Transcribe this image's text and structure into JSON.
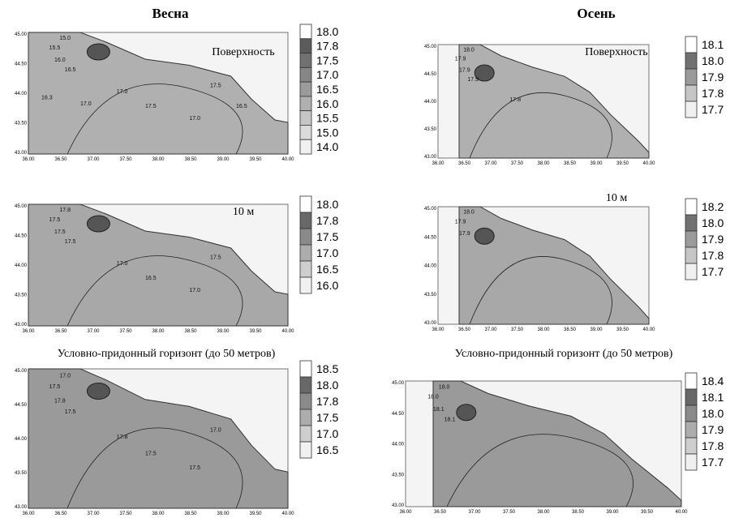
{
  "xticks": [
    "36.00",
    "36.50",
    "37.00",
    "37.50",
    "38.00",
    "38.50",
    "39.00",
    "39.50",
    "40.00"
  ],
  "yticks": [
    "45.00",
    "44.50",
    "44.00",
    "43.50",
    "43.00"
  ],
  "columns": [
    {
      "title": "Весна",
      "panels": [
        {
          "label": "Поверхность",
          "legend": [
            "18.0",
            "17.8",
            "17.5",
            "17.0",
            "16.5",
            "16.0",
            "15.5",
            "15.0",
            "14.0"
          ],
          "contours": [
            "15.0",
            "15.5",
            "16.0",
            "16.5",
            "17.0",
            "17.5",
            "17.5",
            "17.0",
            "16.5",
            "16.3",
            "17.0"
          ]
        },
        {
          "label": "10 м",
          "legend": [
            "18.0",
            "17.8",
            "17.5",
            "17.0",
            "16.5",
            "16.0"
          ],
          "contours": [
            "17.8",
            "17.5",
            "17.5",
            "17.5",
            "17.0",
            "16.5",
            "17.5",
            "17.0"
          ]
        },
        {
          "label": "Условно-придонный горизонт (до 50 метров)",
          "legend": [
            "18.5",
            "18.0",
            "17.8",
            "17.5",
            "17.0",
            "16.5"
          ],
          "contours": [
            "17.0",
            "17.5",
            "17.8",
            "17.5",
            "17.8",
            "17.5",
            "17.0",
            "17.5"
          ]
        }
      ]
    },
    {
      "title": "Осень",
      "panels": [
        {
          "label": "Поверхность",
          "legend": [
            "18.1",
            "18.0",
            "17.9",
            "17.8",
            "17.7"
          ],
          "contours": [
            "18.0",
            "17.9",
            "17.9",
            "17.9",
            "17.8"
          ]
        },
        {
          "label": "10 м",
          "legend": [
            "18.2",
            "18.0",
            "17.9",
            "17.8",
            "17.7"
          ],
          "contours": [
            "18.0",
            "17.9",
            "17.9"
          ]
        },
        {
          "label": "Условно-придонный горизонт (до 50 метров)",
          "legend": [
            "18.4",
            "18.1",
            "18.0",
            "17.9",
            "17.8",
            "17.7"
          ],
          "contours": [
            "18.0",
            "18.0",
            "18.1",
            "18.1"
          ]
        }
      ]
    }
  ]
}
